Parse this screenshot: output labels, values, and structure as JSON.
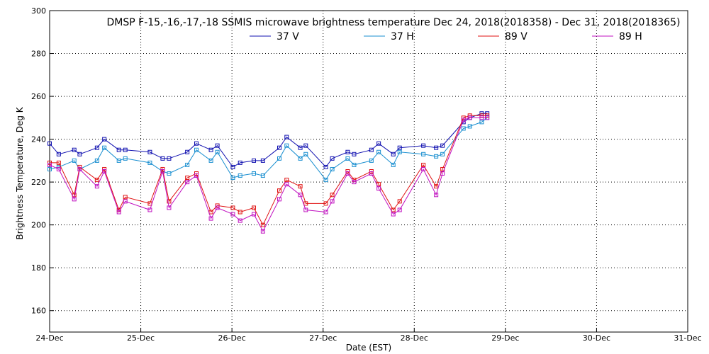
{
  "chart_data": {
    "type": "line",
    "title": "DMSP F-15,-16,-17,-18 SSMIS microwave brightness temperature Dec 24, 2018(2018358) - Dec 31, 2018(2018365)",
    "xlabel": "Date (EST)",
    "ylabel": "Brightness Temperature, Deg K",
    "xlim": [
      0,
      7
    ],
    "ylim": [
      150,
      300
    ],
    "x_ticks": [
      0,
      1,
      2,
      3,
      4,
      5,
      6,
      7
    ],
    "x_tick_labels": [
      "24-Dec",
      "25-Dec",
      "26-Dec",
      "27-Dec",
      "28-Dec",
      "29-Dec",
      "30-Dec",
      "31-Dec"
    ],
    "y_ticks": [
      160,
      180,
      200,
      220,
      240,
      260,
      280,
      300
    ],
    "y_tick_labels": [
      "160",
      "180",
      "200",
      "220",
      "240",
      "260",
      "280",
      "300"
    ],
    "grid": true,
    "legend_position": "top-center",
    "series": [
      {
        "name": "37 V",
        "color": "#1010b0",
        "x": [
          0.0,
          0.1,
          0.27,
          0.33,
          0.52,
          0.6,
          0.76,
          0.83,
          1.1,
          1.24,
          1.31,
          1.51,
          1.61,
          1.77,
          1.84,
          2.01,
          2.09,
          2.24,
          2.34,
          2.52,
          2.6,
          2.75,
          2.81,
          3.03,
          3.1,
          3.27,
          3.34,
          3.53,
          3.61,
          3.77,
          3.84,
          4.1,
          4.24,
          4.31,
          4.54,
          4.61,
          4.74,
          4.8
        ],
        "y": [
          238,
          233,
          235,
          233,
          236,
          240,
          235,
          235,
          234,
          231,
          231,
          234,
          238,
          235,
          237,
          227,
          229,
          230,
          230,
          236,
          241,
          236,
          237,
          227,
          231,
          234,
          233,
          235,
          238,
          233,
          236,
          237,
          236,
          237,
          248,
          250,
          252,
          252
        ]
      },
      {
        "name": "37 H",
        "color": "#1a8fd0",
        "x": [
          0.0,
          0.1,
          0.27,
          0.33,
          0.52,
          0.6,
          0.76,
          0.83,
          1.1,
          1.24,
          1.31,
          1.51,
          1.61,
          1.77,
          1.84,
          2.01,
          2.09,
          2.24,
          2.34,
          2.52,
          2.6,
          2.75,
          2.81,
          3.03,
          3.1,
          3.27,
          3.34,
          3.53,
          3.61,
          3.77,
          3.84,
          4.1,
          4.24,
          4.31,
          4.54,
          4.61,
          4.74,
          4.8
        ],
        "y": [
          226,
          227,
          230,
          226,
          230,
          236,
          230,
          231,
          229,
          225,
          224,
          228,
          235,
          230,
          234,
          222,
          223,
          224,
          223,
          231,
          237,
          231,
          233,
          221,
          226,
          231,
          228,
          230,
          234,
          228,
          234,
          233,
          232,
          233,
          245,
          246,
          248,
          250
        ]
      },
      {
        "name": "89 V",
        "color": "#e01010",
        "x": [
          0.0,
          0.1,
          0.27,
          0.33,
          0.52,
          0.6,
          0.76,
          0.83,
          1.1,
          1.24,
          1.31,
          1.51,
          1.61,
          1.77,
          1.84,
          2.01,
          2.09,
          2.24,
          2.34,
          2.52,
          2.6,
          2.75,
          2.81,
          3.03,
          3.1,
          3.27,
          3.34,
          3.53,
          3.61,
          3.77,
          3.84,
          4.1,
          4.24,
          4.31,
          4.54,
          4.61,
          4.74,
          4.8
        ],
        "y": [
          229,
          229,
          214,
          227,
          221,
          226,
          207,
          213,
          210,
          226,
          211,
          222,
          224,
          206,
          209,
          208,
          206,
          208,
          200,
          216,
          221,
          218,
          210,
          210,
          214,
          225,
          221,
          225,
          219,
          207,
          211,
          228,
          218,
          226,
          250,
          251,
          251,
          251
        ]
      },
      {
        "name": "89 H",
        "color": "#c010c0",
        "x": [
          0.0,
          0.1,
          0.27,
          0.33,
          0.52,
          0.6,
          0.76,
          0.83,
          1.1,
          1.24,
          1.31,
          1.51,
          1.61,
          1.77,
          1.84,
          2.01,
          2.09,
          2.24,
          2.34,
          2.52,
          2.6,
          2.75,
          2.81,
          3.03,
          3.1,
          3.27,
          3.34,
          3.53,
          3.61,
          3.77,
          3.84,
          4.1,
          4.24,
          4.31,
          4.54,
          4.61,
          4.74,
          4.8
        ],
        "y": [
          228,
          226,
          212,
          226,
          218,
          225,
          206,
          211,
          207,
          225,
          208,
          220,
          223,
          203,
          208,
          205,
          202,
          205,
          197,
          212,
          219,
          214,
          207,
          206,
          211,
          224,
          220,
          224,
          217,
          205,
          207,
          226,
          214,
          224,
          249,
          250,
          250,
          250
        ]
      }
    ]
  }
}
